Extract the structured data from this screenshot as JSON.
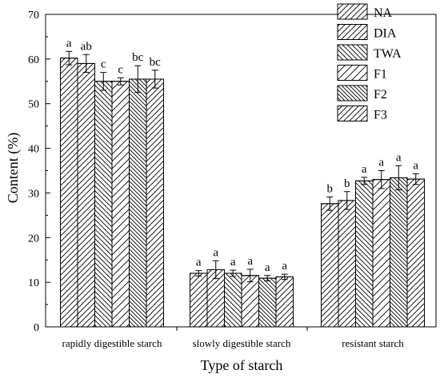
{
  "chart_data": {
    "type": "bar",
    "xlabel": "Type of starch",
    "ylabel": "Content (%)",
    "ylim": [
      0,
      70
    ],
    "yticks": [
      0,
      10,
      20,
      30,
      40,
      50,
      60,
      70
    ],
    "grid": false,
    "legend_position": "top-right",
    "categories": [
      "rapidly digestible starch",
      "slowly digestible starch",
      "resistant starch"
    ],
    "series": [
      {
        "name": "NA",
        "values": [
          60.2,
          12.0,
          27.6
        ],
        "errors": [
          1.5,
          0.6,
          1.5
        ],
        "labels": [
          "a",
          "a",
          "b"
        ],
        "pattern": "hatch-right"
      },
      {
        "name": "DIA",
        "values": [
          59.0,
          12.8,
          28.3
        ],
        "errors": [
          2.0,
          2.0,
          2.0
        ],
        "labels": [
          "ab",
          "a",
          "b"
        ],
        "pattern": "hatch-right"
      },
      {
        "name": "TWA",
        "values": [
          55.0,
          12.0,
          32.7
        ],
        "errors": [
          2.0,
          0.7,
          0.8
        ],
        "labels": [
          "c",
          "a",
          "a"
        ],
        "pattern": "hatch-left"
      },
      {
        "name": "F1",
        "values": [
          55.0,
          11.5,
          33.0
        ],
        "errors": [
          0.8,
          1.4,
          2.0
        ],
        "labels": [
          "c",
          "a",
          "a"
        ],
        "pattern": "hatch-right-sparse"
      },
      {
        "name": "F2",
        "values": [
          55.5,
          10.9,
          33.4
        ],
        "errors": [
          3.0,
          0.6,
          2.7
        ],
        "labels": [
          "bc",
          "a",
          "a"
        ],
        "pattern": "hatch-left-dense"
      },
      {
        "name": "F3",
        "values": [
          55.5,
          11.2,
          33.1
        ],
        "errors": [
          2.0,
          0.6,
          1.2
        ],
        "labels": [
          "bc",
          "a",
          "a"
        ],
        "pattern": "hatch-right"
      }
    ]
  }
}
